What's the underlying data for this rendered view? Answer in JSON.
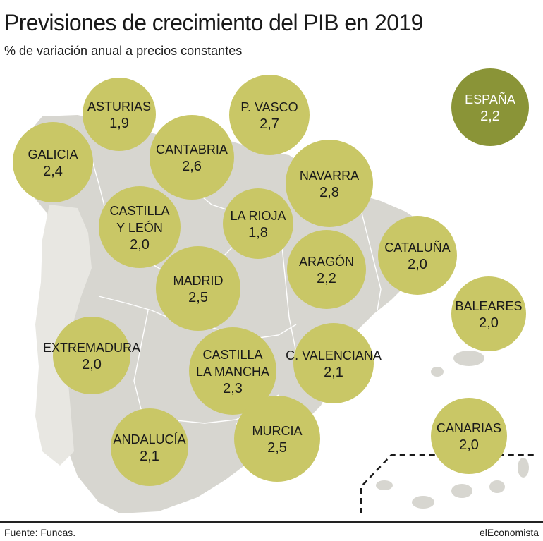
{
  "header": {
    "title": "Previsiones de crecimiento del PIB en 2019",
    "subtitle": "% de variación anual a precios constantes"
  },
  "colors": {
    "bubble": "#c9c766",
    "bubble_national": "#8a9437",
    "land": "#d7d6d0",
    "border": "#ffffff",
    "text_dark": "#1a1a1a",
    "text_light": "#ffffff"
  },
  "regions": [
    {
      "id": "asturias",
      "lines": [
        "ASTURIAS"
      ],
      "value": "1,9"
    },
    {
      "id": "p-vasco",
      "lines": [
        "P. VASCO"
      ],
      "value": "2,7"
    },
    {
      "id": "espana",
      "lines": [
        "ESPAÑA"
      ],
      "value": "2,2",
      "national": true
    },
    {
      "id": "galicia",
      "lines": [
        "GALICIA"
      ],
      "value": "2,4"
    },
    {
      "id": "cantabria",
      "lines": [
        "CANTABRIA"
      ],
      "value": "2,6"
    },
    {
      "id": "navarra",
      "lines": [
        "NAVARRA"
      ],
      "value": "2,8"
    },
    {
      "id": "castilla-leon",
      "lines": [
        "CASTILLA",
        "Y LEÓN"
      ],
      "value": "2,0"
    },
    {
      "id": "la-rioja",
      "lines": [
        "LA RIOJA"
      ],
      "value": "1,8"
    },
    {
      "id": "cataluna",
      "lines": [
        "CATALUÑA"
      ],
      "value": "2,0"
    },
    {
      "id": "aragon",
      "lines": [
        "ARAGÓN"
      ],
      "value": "2,2"
    },
    {
      "id": "madrid",
      "lines": [
        "MADRID"
      ],
      "value": "2,5"
    },
    {
      "id": "baleares",
      "lines": [
        "BALEARES"
      ],
      "value": "2,0"
    },
    {
      "id": "extremadura",
      "lines": [
        "EXTREMADURA"
      ],
      "value": "2,0"
    },
    {
      "id": "castilla-la-mancha",
      "lines": [
        "CASTILLA",
        "LA MANCHA"
      ],
      "value": "2,3"
    },
    {
      "id": "c-valenciana",
      "lines": [
        "C. VALENCIANA"
      ],
      "value": "2,1"
    },
    {
      "id": "murcia",
      "lines": [
        "MURCIA"
      ],
      "value": "2,5"
    },
    {
      "id": "andalucia",
      "lines": [
        "ANDALUCÍA"
      ],
      "value": "2,1"
    },
    {
      "id": "canarias",
      "lines": [
        "CANARIAS"
      ],
      "value": "2,0"
    }
  ],
  "footer": {
    "source": "Fuente: Funcas.",
    "brand": "elEconomista"
  }
}
